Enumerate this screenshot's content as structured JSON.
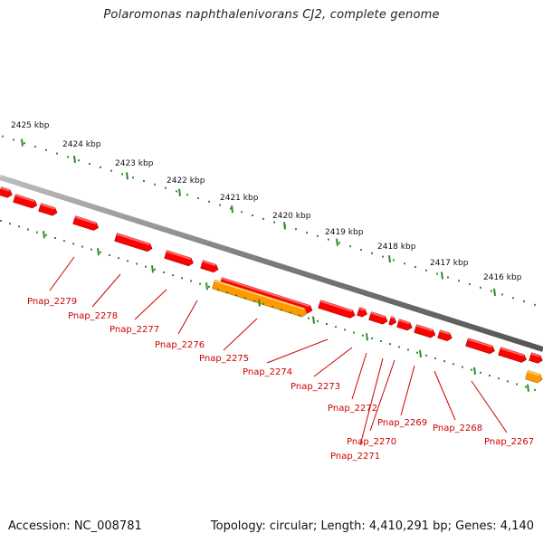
{
  "title": "Polaromonas naphthalenivorans CJ2, complete genome",
  "footer": {
    "accession": "Accession: NC_008781",
    "summary": "Topology: circular; Length: 4,410,291 bp; Genes: 4,140"
  },
  "colors": {
    "backbone": "#8a8a8a",
    "gene_forward": "#ff0000",
    "gene_rna": "#ff9900",
    "tick": "#2e8b2e",
    "label": "#cc0000"
  },
  "scale_labels": [
    "2425 kbp",
    "2424 kbp",
    "2423 kbp",
    "2422 kbp",
    "2421 kbp",
    "2420 kbp",
    "2419 kbp",
    "2418 kbp",
    "2417 kbp",
    "2416 kbp"
  ],
  "gene_labels": [
    "Pnap_2279",
    "Pnap_2278",
    "Pnap_2277",
    "Pnap_2276",
    "Pnap_2275",
    "Pnap_2274",
    "Pnap_2273",
    "Pnap_2272",
    "Pnap_2271",
    "Pnap_2270",
    "Pnap_2269",
    "Pnap_2268",
    "Pnap_2267"
  ]
}
